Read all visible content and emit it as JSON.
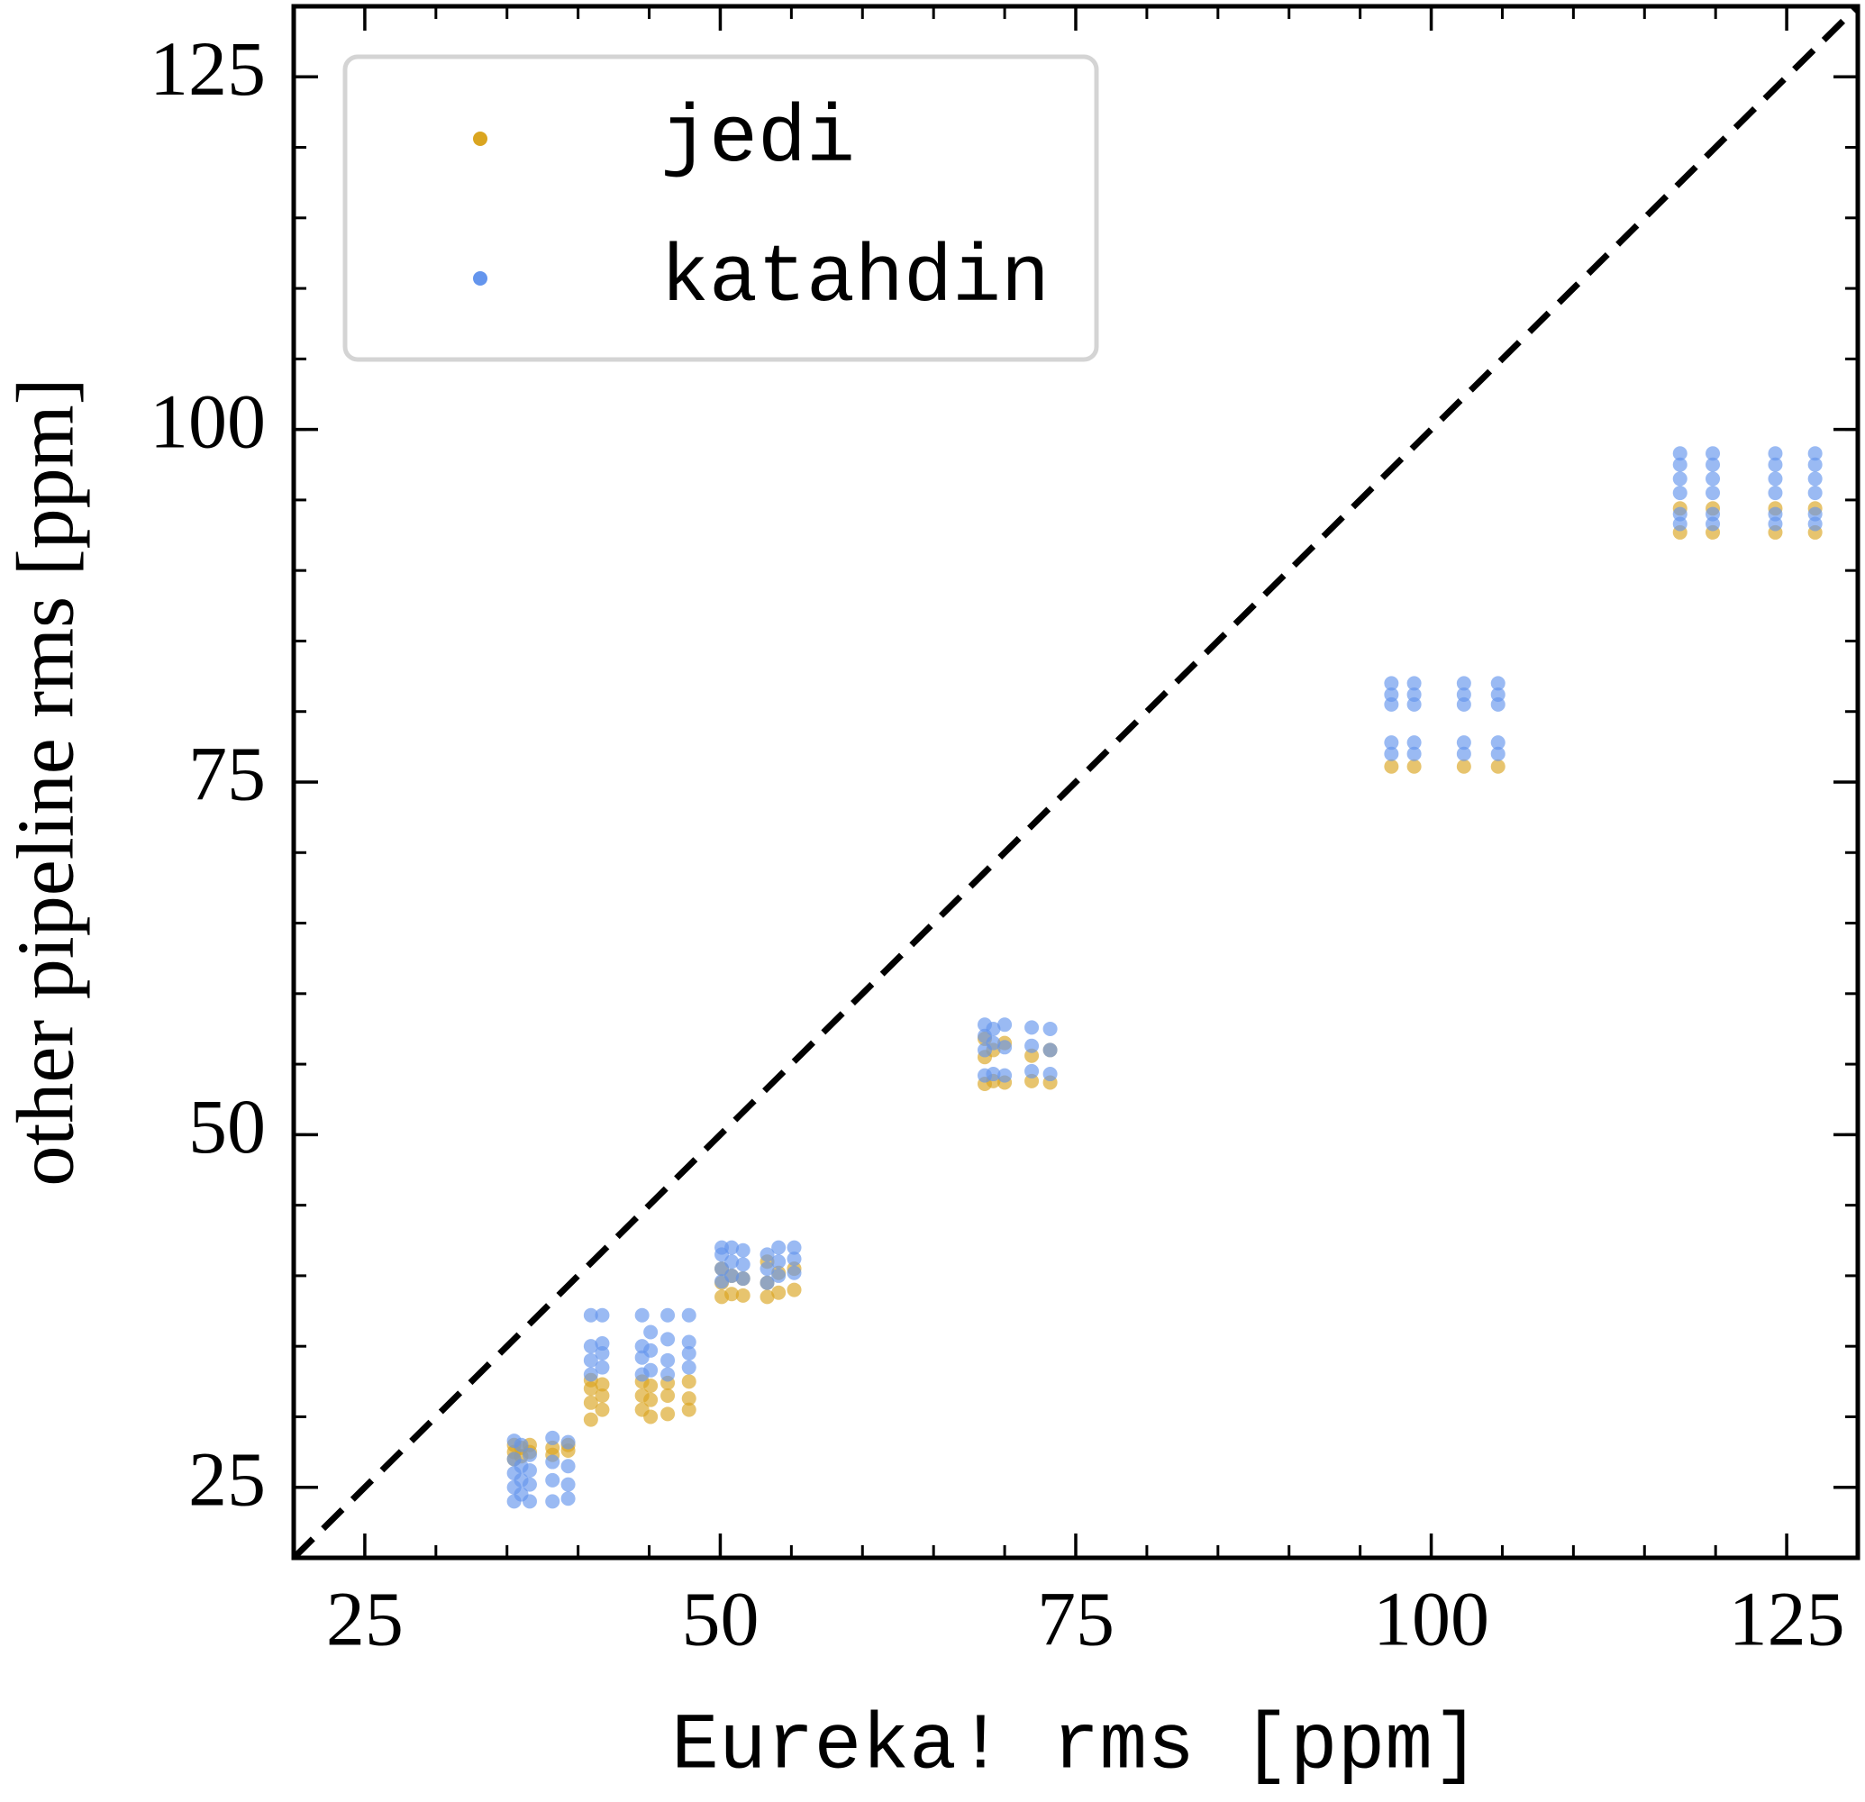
{
  "chart_data": {
    "type": "scatter",
    "xlabel": "Eureka! rms [ppm]",
    "ylabel": "other pipeline rms [ppm]",
    "xlim": [
      20,
      130
    ],
    "ylim": [
      20,
      130
    ],
    "xticks": [
      25,
      50,
      75,
      100,
      125
    ],
    "yticks": [
      25,
      50,
      75,
      100,
      125
    ],
    "minor_ticks": true,
    "identity_line": true,
    "legend": "upper left",
    "series": [
      {
        "name": "jedi",
        "color": "#DAA520",
        "x": [
          35.5,
          35.5,
          35.5,
          36,
          36,
          36.6,
          36.6,
          38.2,
          38.2,
          39.3,
          39.3,
          40.9,
          40.9,
          40.9,
          40.9,
          41.7,
          41.7,
          41.7,
          44.5,
          44.5,
          44.5,
          45.1,
          45.1,
          45.1,
          46.3,
          46.3,
          46.3,
          47.8,
          47.8,
          47.8,
          50.1,
          50.1,
          50.1,
          50.8,
          50.8,
          51.6,
          51.6,
          53.3,
          53.3,
          53.3,
          54.1,
          54.1,
          55.2,
          55.2,
          68.6,
          68.6,
          68.6,
          69.2,
          69.2,
          70,
          70,
          71.9,
          71.9,
          73.2,
          73.2,
          97.2,
          98.8,
          102.3,
          104.7,
          117.5,
          117.5,
          119.8,
          119.8,
          124.2,
          124.2,
          127,
          127
        ],
        "values": [
          27.5,
          28,
          27,
          27.8,
          27.2,
          28,
          27.5,
          27.8,
          27.3,
          27.6,
          28,
          29.8,
          31,
          32,
          32.6,
          30.5,
          31.5,
          32.3,
          30.5,
          31.5,
          32.5,
          30,
          31.2,
          32.2,
          30.2,
          31.5,
          32.4,
          30.5,
          31.3,
          32.5,
          38.5,
          39.5,
          40.5,
          38.7,
          40,
          38.6,
          39.8,
          38.5,
          39.5,
          41,
          38.8,
          40.2,
          39,
          40.5,
          53.6,
          55.5,
          56.8,
          53.8,
          56,
          53.7,
          56.5,
          53.8,
          55.6,
          53.7,
          56,
          76.1,
          76.1,
          76.1,
          76.1,
          92.7,
          94.4,
          92.7,
          94.4,
          92.7,
          94.4,
          92.7,
          94.4
        ]
      },
      {
        "name": "katahdin",
        "color": "#6495ED",
        "x": [
          35.5,
          35.5,
          35.5,
          35.5,
          35.5,
          36,
          36,
          36,
          36,
          36.6,
          36.6,
          36.6,
          36.6,
          38.2,
          38.2,
          38.2,
          38.2,
          39.3,
          39.3,
          39.3,
          39.3,
          40.9,
          40.9,
          40.9,
          40.9,
          41.7,
          41.7,
          41.7,
          41.7,
          44.5,
          44.5,
          44.5,
          44.5,
          45.1,
          45.1,
          45.1,
          46.3,
          46.3,
          46.3,
          46.3,
          47.8,
          47.8,
          47.8,
          47.8,
          50.1,
          50.1,
          50.1,
          50.1,
          50.8,
          50.8,
          50.8,
          51.6,
          51.6,
          51.6,
          53.3,
          53.3,
          53.3,
          54.1,
          54.1,
          54.1,
          55.2,
          55.2,
          55.2,
          68.6,
          68.6,
          68.6,
          68.6,
          69.2,
          69.2,
          69.2,
          70,
          70,
          70,
          71.9,
          71.9,
          71.9,
          73.2,
          73.2,
          73.2,
          97.2,
          97.2,
          97.2,
          97.2,
          97.2,
          98.8,
          98.8,
          98.8,
          98.8,
          98.8,
          102.3,
          102.3,
          102.3,
          102.3,
          102.3,
          104.7,
          104.7,
          104.7,
          104.7,
          104.7,
          117.5,
          117.5,
          117.5,
          117.5,
          117.5,
          117.5,
          119.8,
          119.8,
          119.8,
          119.8,
          119.8,
          119.8,
          124.2,
          124.2,
          124.2,
          124.2,
          124.2,
          124.2,
          127,
          127,
          127,
          127,
          127,
          127
        ],
        "values": [
          24,
          25,
          26,
          27,
          28.3,
          24.5,
          25.5,
          26.5,
          28,
          24,
          25.2,
          26.2,
          27.3,
          24,
          25.5,
          26.8,
          28.5,
          24.2,
          25.2,
          26.5,
          28.2,
          33,
          34,
          35,
          37.2,
          33.5,
          34.5,
          35.2,
          37.2,
          33,
          34.2,
          35,
          37.2,
          33.3,
          34.7,
          36,
          33,
          34,
          35.5,
          37.2,
          33.5,
          34.5,
          35.3,
          37.2,
          39.6,
          40.5,
          41.5,
          42,
          40,
          41,
          42,
          39.8,
          40.8,
          41.8,
          39.5,
          40.5,
          41.5,
          40,
          41,
          42,
          40.2,
          41.2,
          42,
          54.2,
          56,
          57,
          57.8,
          54.3,
          56.5,
          57.5,
          54.2,
          56.2,
          57.8,
          54.5,
          56.3,
          57.6,
          54.3,
          56,
          57.5,
          77,
          77.8,
          80.5,
          81.2,
          82,
          77,
          77.8,
          80.5,
          81.2,
          82,
          77,
          77.8,
          80.5,
          81.2,
          82,
          77,
          77.8,
          80.5,
          81.2,
          82,
          93.3,
          94,
          95.5,
          96.5,
          97.5,
          98.3,
          93.3,
          94,
          95.5,
          96.5,
          97.5,
          98.3,
          93.3,
          94,
          95.5,
          96.5,
          97.5,
          98.3,
          93.3,
          94,
          95.5,
          96.5,
          97.5,
          98.3
        ]
      }
    ]
  }
}
